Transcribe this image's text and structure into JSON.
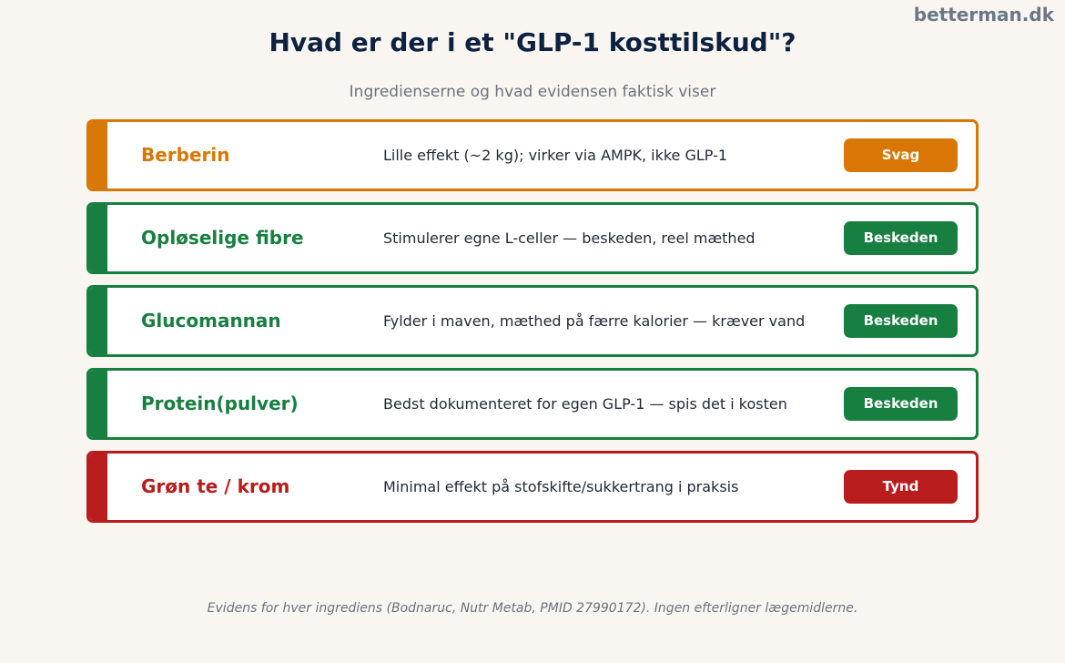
{
  "brand": "betterman.dk",
  "title": "Hvad er der i et \"GLP-1 kosttilskud\"?",
  "subtitle": "Ingredienserne og hvad evidensen faktisk viser",
  "rows": [
    {
      "name": "Berberin",
      "description": "Lille effekt (~2 kg); virker via AMPK, ikke GLP-1",
      "rating": "Svag",
      "color": "#d97706"
    },
    {
      "name": "Opløselige fibre",
      "description": "Stimulerer egne L-celler — beskeden, reel mæthed",
      "rating": "Beskeden",
      "color": "#177f3f"
    },
    {
      "name": "Glucomannan",
      "description": "Fylder i maven, mæthed på færre kalorier — kræver vand",
      "rating": "Beskeden",
      "color": "#177f3f"
    },
    {
      "name": "Protein(pulver)",
      "description": "Bedst dokumenteret for egen GLP-1 — spis det i kosten",
      "rating": "Beskeden",
      "color": "#177f3f"
    },
    {
      "name": "Grøn te / krom",
      "description": "Minimal effekt på stofskifte/sukkertrang i praksis",
      "rating": "Tynd",
      "color": "#b91c1c"
    }
  ],
  "footnote": "Evidens for hver ingrediens (Bodnaruc, Nutr Metab, PMID 27990172). Ingen efterligner lægemidlerne."
}
